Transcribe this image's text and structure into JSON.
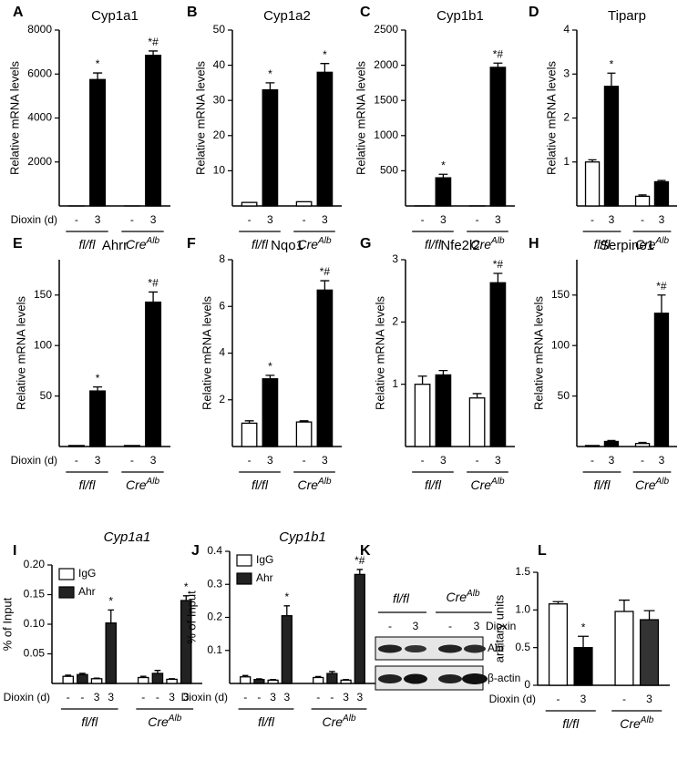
{
  "chart_data": [
    {
      "type": "bar",
      "panel": "A",
      "title": "Cyp1a1",
      "ylabel": "Relative mRNA levels",
      "xlabel": "Dioxin (d)",
      "categories": [
        "-",
        "3",
        "-",
        "3"
      ],
      "groups": [
        {
          "name": "fl/fl"
        },
        {
          "name": "Cre",
          "sup": "Alb"
        }
      ],
      "values": [
        1,
        5750,
        1,
        6850
      ],
      "errors": [
        null,
        300,
        null,
        200
      ],
      "colors": [
        "#ffffff",
        "#000000",
        "#ffffff",
        "#000000"
      ],
      "annotations": [
        null,
        "*",
        null,
        "*#"
      ],
      "ylim": [
        0,
        8000
      ],
      "yticks": [
        2000,
        4000,
        6000,
        8000
      ]
    },
    {
      "type": "bar",
      "panel": "B",
      "title": "Cyp1a2",
      "ylabel": "Relative mRNA levels",
      "categories": [
        "-",
        "3",
        "-",
        "3"
      ],
      "groups": [
        {
          "name": "fl/fl"
        },
        {
          "name": "Cre",
          "sup": "Alb"
        }
      ],
      "values": [
        1,
        33,
        1.2,
        38
      ],
      "errors": [
        null,
        2,
        null,
        2.5
      ],
      "colors": [
        "#ffffff",
        "#000000",
        "#ffffff",
        "#000000"
      ],
      "annotations": [
        null,
        "*",
        null,
        "*"
      ],
      "ylim": [
        0,
        50
      ],
      "yticks": [
        10,
        20,
        30,
        40,
        50
      ]
    },
    {
      "type": "bar",
      "panel": "C",
      "title": "Cyp1b1",
      "ylabel": "Relative mRNA levels",
      "categories": [
        "-",
        "3",
        "-",
        "3"
      ],
      "groups": [
        {
          "name": "fl/fl"
        },
        {
          "name": "Cre",
          "sup": "Alb"
        }
      ],
      "values": [
        1,
        400,
        1,
        1970
      ],
      "errors": [
        null,
        50,
        null,
        60
      ],
      "colors": [
        "#ffffff",
        "#000000",
        "#ffffff",
        "#000000"
      ],
      "annotations": [
        null,
        "*",
        null,
        "*#"
      ],
      "ylim": [
        0,
        2500
      ],
      "yticks": [
        500,
        1000,
        1500,
        2000,
        2500
      ]
    },
    {
      "type": "bar",
      "panel": "D",
      "title": "Tiparp",
      "ylabel": "Relative mRNA levels",
      "categories": [
        "-",
        "3",
        "-",
        "3"
      ],
      "groups": [
        {
          "name": "fl/fl"
        },
        {
          "name": "Cre",
          "sup": "Alb"
        }
      ],
      "values": [
        1.0,
        2.72,
        0.22,
        0.55
      ],
      "errors": [
        0.05,
        0.3,
        0.03,
        0.03
      ],
      "colors": [
        "#ffffff",
        "#000000",
        "#ffffff",
        "#000000"
      ],
      "annotations": [
        null,
        "*",
        null,
        null
      ],
      "ylim": [
        0,
        4
      ],
      "yticks": [
        1,
        2,
        3,
        4
      ]
    },
    {
      "type": "bar",
      "panel": "E",
      "title": "Ahrr",
      "ylabel": "Relative mRNA levels",
      "xlabel": "Dioxin (d)",
      "categories": [
        "-",
        "3",
        "-",
        "3"
      ],
      "groups": [
        {
          "name": "fl/fl"
        },
        {
          "name": "Cre",
          "sup": "Alb"
        }
      ],
      "values": [
        1,
        55,
        1,
        143
      ],
      "errors": [
        null,
        4,
        null,
        10
      ],
      "colors": [
        "#ffffff",
        "#000000",
        "#ffffff",
        "#000000"
      ],
      "annotations": [
        null,
        "*",
        null,
        "*#"
      ],
      "ylim": [
        0,
        185
      ],
      "yticks": [
        50,
        100,
        150
      ]
    },
    {
      "type": "bar",
      "panel": "F",
      "title": "Nqo1",
      "ylabel": "Relative mRNA levels",
      "categories": [
        "-",
        "3",
        "-",
        "3"
      ],
      "groups": [
        {
          "name": "fl/fl"
        },
        {
          "name": "Cre",
          "sup": "Alb"
        }
      ],
      "values": [
        1.0,
        2.9,
        1.05,
        6.7
      ],
      "errors": [
        0.1,
        0.15,
        0.05,
        0.4
      ],
      "colors": [
        "#ffffff",
        "#000000",
        "#ffffff",
        "#000000"
      ],
      "annotations": [
        null,
        "*",
        null,
        "*#"
      ],
      "ylim": [
        0,
        8
      ],
      "yticks": [
        2,
        4,
        6,
        8
      ]
    },
    {
      "type": "bar",
      "panel": "G",
      "title": "Nfe2l2",
      "ylabel": "Relative mRNA levels",
      "categories": [
        "-",
        "3",
        "-",
        "3"
      ],
      "groups": [
        {
          "name": "fl/fl"
        },
        {
          "name": "Cre",
          "sup": "Alb"
        }
      ],
      "values": [
        1.0,
        1.15,
        0.78,
        2.63
      ],
      "errors": [
        0.13,
        0.07,
        0.07,
        0.15
      ],
      "colors": [
        "#ffffff",
        "#000000",
        "#ffffff",
        "#000000"
      ],
      "annotations": [
        null,
        null,
        null,
        "*#"
      ],
      "ylim": [
        0,
        3
      ],
      "yticks": [
        1,
        2,
        3
      ]
    },
    {
      "type": "bar",
      "panel": "H",
      "title": "Serpine1",
      "ylabel": "Relative mRNA levels",
      "categories": [
        "-",
        "3",
        "-",
        "3"
      ],
      "groups": [
        {
          "name": "fl/fl"
        },
        {
          "name": "Cre",
          "sup": "Alb"
        }
      ],
      "values": [
        1,
        5,
        3,
        132
      ],
      "errors": [
        null,
        1,
        1,
        18
      ],
      "colors": [
        "#ffffff",
        "#000000",
        "#ffffff",
        "#000000"
      ],
      "annotations": [
        null,
        null,
        null,
        "*#"
      ],
      "ylim": [
        0,
        185
      ],
      "yticks": [
        50,
        100,
        150
      ]
    },
    {
      "type": "bar",
      "panel": "I",
      "title": "Cyp1a1",
      "title_italic": true,
      "ylabel": "% of Input",
      "xlabel": "Dioxin (d)",
      "categories": [
        "-",
        "-",
        "3",
        "3",
        "-",
        "-",
        "3",
        "3"
      ],
      "groups": [
        {
          "name": "fl/fl"
        },
        {
          "name": "Cre",
          "sup": "Alb"
        }
      ],
      "legend": [
        {
          "name": "IgG",
          "color": "#ffffff"
        },
        {
          "name": "Ahr",
          "color": "#222222"
        }
      ],
      "values": [
        0.012,
        0.015,
        0.008,
        0.102,
        0.01,
        0.017,
        0.007,
        0.14
      ],
      "errors": [
        0.002,
        0.002,
        0.001,
        0.022,
        0.002,
        0.005,
        0.001,
        0.008
      ],
      "colors": [
        "#ffffff",
        "#222222",
        "#ffffff",
        "#222222",
        "#ffffff",
        "#222222",
        "#ffffff",
        "#222222"
      ],
      "annotations": [
        null,
        null,
        null,
        "*",
        null,
        null,
        null,
        "*"
      ],
      "ylim": [
        0,
        0.2
      ],
      "yticks": [
        0.05,
        {
          "value": 0.1,
          "label": "0.10"
        },
        0.15,
        {
          "value": 0.2,
          "label": "0.20"
        }
      ]
    },
    {
      "type": "bar",
      "panel": "J",
      "title": "Cyp1b1",
      "title_italic": true,
      "ylabel": "% of Input",
      "xlabel": "Dioxin (d)",
      "categories": [
        "-",
        "-",
        "3",
        "3",
        "-",
        "-",
        "3",
        "3"
      ],
      "groups": [
        {
          "name": "fl/fl"
        },
        {
          "name": "Cre",
          "sup": "Alb"
        }
      ],
      "legend": [
        {
          "name": "IgG",
          "color": "#ffffff"
        },
        {
          "name": "Ahr",
          "color": "#222222"
        }
      ],
      "values": [
        0.02,
        0.012,
        0.01,
        0.205,
        0.018,
        0.03,
        0.01,
        0.33
      ],
      "errors": [
        0.004,
        0.002,
        0.002,
        0.03,
        0.003,
        0.006,
        0.002,
        0.015
      ],
      "colors": [
        "#ffffff",
        "#222222",
        "#ffffff",
        "#222222",
        "#ffffff",
        "#222222",
        "#ffffff",
        "#222222"
      ],
      "annotations": [
        null,
        null,
        null,
        "*",
        null,
        null,
        null,
        "*#"
      ],
      "ylim": [
        0,
        0.4
      ],
      "yticks": [
        0.1,
        0.2,
        0.3,
        0.4
      ]
    },
    {
      "type": "bar",
      "panel": "L",
      "ylabel": "arbitary units",
      "xlabel": "Dioxin (d)",
      "categories": [
        "-",
        "3",
        "-",
        "3"
      ],
      "groups": [
        {
          "name": "fl/fl"
        },
        {
          "name": "Cre",
          "sup": "Alb"
        }
      ],
      "values": [
        1.08,
        0.5,
        0.98,
        0.87
      ],
      "errors": [
        0.03,
        0.15,
        0.15,
        0.12
      ],
      "colors": [
        "#ffffff",
        "#000000",
        "#ffffff",
        "#333333"
      ],
      "annotations": [
        null,
        "*",
        null,
        null
      ],
      "ylim": [
        0,
        1.5
      ],
      "yticks": [
        0,
        0.5,
        {
          "value": 1,
          "label": "1.0"
        },
        1.5
      ]
    }
  ],
  "blot": {
    "panel": "K",
    "groups": [
      {
        "name": "fl/fl"
      },
      {
        "name": "Cre",
        "sup": "Alb"
      }
    ],
    "lanes": [
      "-",
      "3",
      "-",
      "3"
    ],
    "treatment": "Dioxin",
    "rows": [
      "Ahr",
      "β-actin"
    ]
  }
}
